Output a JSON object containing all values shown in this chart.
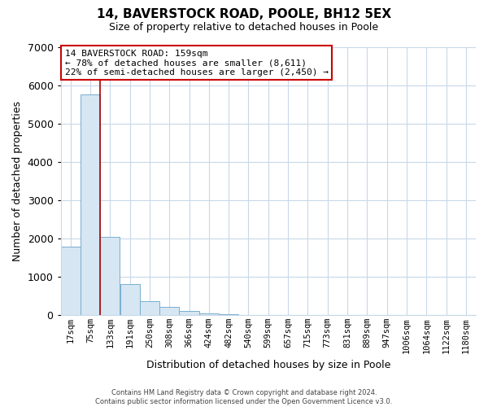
{
  "title": "14, BAVERSTOCK ROAD, POOLE, BH12 5EX",
  "subtitle": "Size of property relative to detached houses in Poole",
  "xlabel": "Distribution of detached houses by size in Poole",
  "ylabel": "Number of detached properties",
  "bar_labels": [
    "17sqm",
    "75sqm",
    "133sqm",
    "191sqm",
    "250sqm",
    "308sqm",
    "366sqm",
    "424sqm",
    "482sqm",
    "540sqm",
    "599sqm",
    "657sqm",
    "715sqm",
    "773sqm",
    "831sqm",
    "889sqm",
    "947sqm",
    "1006sqm",
    "1064sqm",
    "1122sqm",
    "1180sqm"
  ],
  "bar_values": [
    1780,
    5750,
    2050,
    810,
    370,
    220,
    110,
    55,
    30,
    10,
    5,
    0,
    0,
    0,
    0,
    0,
    0,
    0,
    0,
    0,
    0
  ],
  "bar_color": "#d6e6f2",
  "bar_edge_color": "#7aaecf",
  "vline_color": "#aa0000",
  "vline_x_index": 2,
  "ylim": [
    0,
    7000
  ],
  "yticks": [
    0,
    1000,
    2000,
    3000,
    4000,
    5000,
    6000,
    7000
  ],
  "annotation_title": "14 BAVERSTOCK ROAD: 159sqm",
  "annotation_line1": "← 78% of detached houses are smaller (8,611)",
  "annotation_line2": "22% of semi-detached houses are larger (2,450) →",
  "annotation_box_color": "#ffffff",
  "annotation_box_edge": "#cc0000",
  "footer_line1": "Contains HM Land Registry data © Crown copyright and database right 2024.",
  "footer_line2": "Contains public sector information licensed under the Open Government Licence v3.0.",
  "bg_color": "#ffffff",
  "grid_color": "#c8d8e8",
  "title_fontsize": 11,
  "subtitle_fontsize": 9,
  "ylabel_fontsize": 9,
  "xlabel_fontsize": 9,
  "tick_fontsize": 7.5,
  "annot_fontsize": 8,
  "footer_fontsize": 6
}
